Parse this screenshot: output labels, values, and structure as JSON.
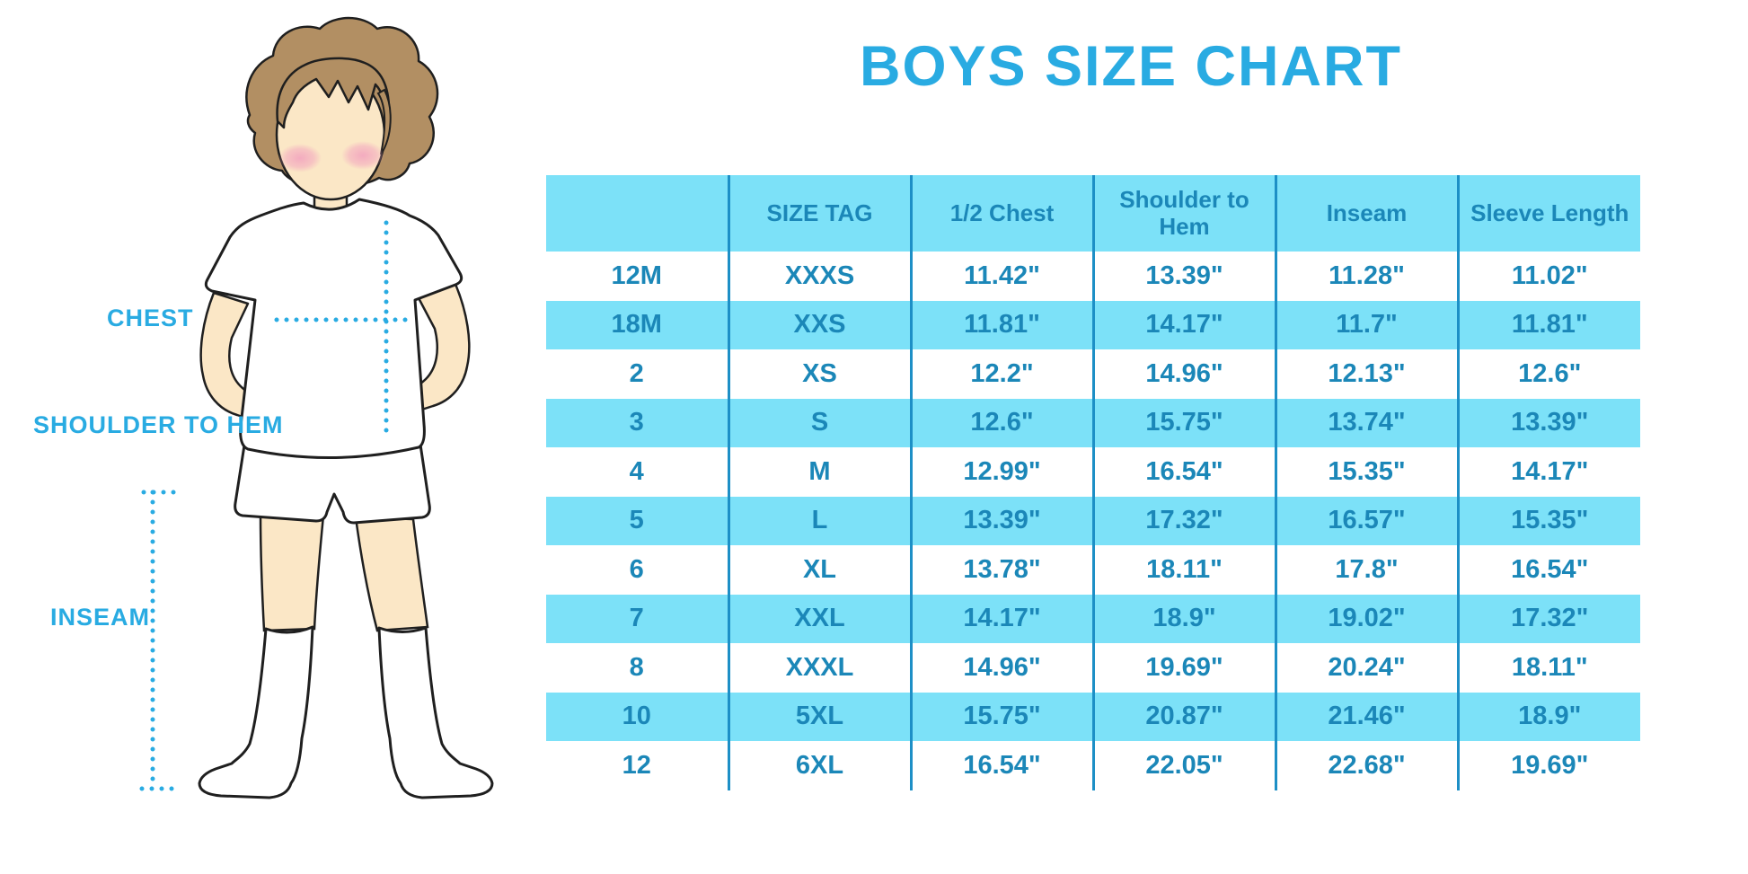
{
  "title": "BOYS SIZE CHART",
  "figure": {
    "labels": {
      "chest": "CHEST",
      "shoulder_to_hem": "SHOULDER TO HEM",
      "inseam": "INSEAM"
    }
  },
  "colors": {
    "accent_blue": "#29ABE2",
    "table_fill": "#7CE1F8",
    "table_text": "#1B87B8",
    "table_divider": "#1D8FC6",
    "skin": "#FBE7C6",
    "hair": "#B28F63",
    "blush": "#F3A8BF"
  },
  "chart_data": {
    "type": "table",
    "title": "BOYS SIZE CHART",
    "columns": [
      "",
      "SIZE TAG",
      "1/2 Chest",
      "Shoulder to Hem",
      "Inseam",
      "Sleeve Length"
    ],
    "rows": [
      [
        "12M",
        "XXXS",
        "11.42\"",
        "13.39\"",
        "11.28\"",
        "11.02\""
      ],
      [
        "18M",
        "XXS",
        "11.81\"",
        "14.17\"",
        "11.7\"",
        "11.81\""
      ],
      [
        "2",
        "XS",
        "12.2\"",
        "14.96\"",
        "12.13\"",
        "12.6\""
      ],
      [
        "3",
        "S",
        "12.6\"",
        "15.75\"",
        "13.74\"",
        "13.39\""
      ],
      [
        "4",
        "M",
        "12.99\"",
        "16.54\"",
        "15.35\"",
        "14.17\""
      ],
      [
        "5",
        "L",
        "13.39\"",
        "17.32\"",
        "16.57\"",
        "15.35\""
      ],
      [
        "6",
        "XL",
        "13.78\"",
        "18.11\"",
        "17.8\"",
        "16.54\""
      ],
      [
        "7",
        "XXL",
        "14.17\"",
        "18.9\"",
        "19.02\"",
        "17.32\""
      ],
      [
        "8",
        "XXXL",
        "14.96\"",
        "19.69\"",
        "20.24\"",
        "18.11\""
      ],
      [
        "10",
        "5XL",
        "15.75\"",
        "20.87\"",
        "21.46\"",
        "18.9\""
      ],
      [
        "12",
        "6XL",
        "16.54\"",
        "22.05\"",
        "22.68\"",
        "19.69\""
      ]
    ]
  }
}
